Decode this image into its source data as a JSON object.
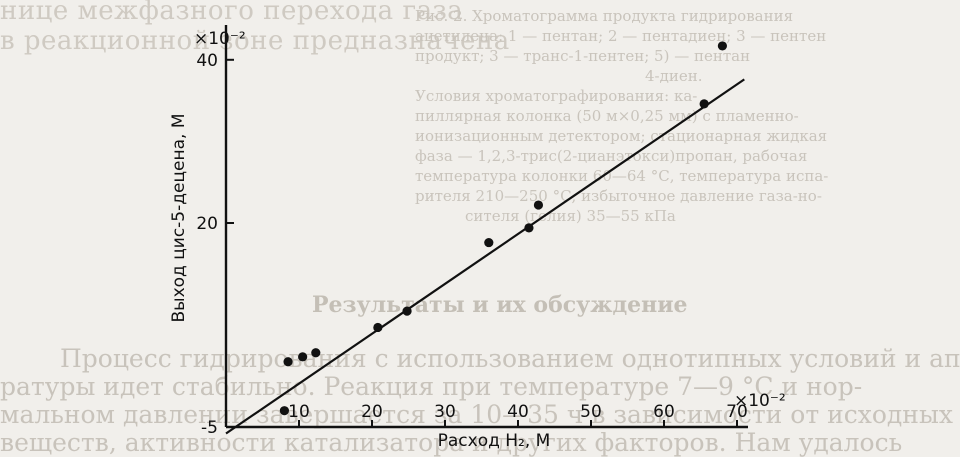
{
  "background_text": {
    "top_lines": [
      "нице межфазного перехода газа",
      "в реакционной зоне предназначена"
    ],
    "figure_caption": [
      "Рис. 2. Хроматограмма продукта гидрирования",
      "ацетилена: 1 — пентан; 2 — пентадиен; 3 — пентен",
      "продукт; 3 — транс-1-пентен; 5) — пентан",
      "4-диен."
    ],
    "method_paragraph": [
      "Условия хроматографирования: ка-",
      "пиллярная колонка (50 м×0,25 мм) с пламенно-",
      "ионизационным детектором; стационарная жидкая",
      "фаза — 1,2,3-трис(2-цианэтокси)пропан, рабочая",
      "температура колонки 60—64 °С, температура испа-",
      "рителя 210—250 °С, избыточное давление газа-но-",
      "сителя (гелия) 35—55 кПа"
    ],
    "section_heading": "Результаты и их обсуждение",
    "body_paragraph": [
      "Процесс гидрирования с использованием однотипных условий и аппа-",
      "ратуры идет стабильно. Реакция при температуре 7—9 °С и нор-",
      "мальном давлении завершается за 10—35 ч в зависимости от исходных",
      "веществ, активности катализатора и других факторов. Нам удалось"
    ]
  },
  "chart_data": {
    "type": "scatter",
    "x_multiplier_label": "×10⁻²",
    "y_multiplier_label": "×10⁻²",
    "xlabel": "Расход H₂, М",
    "ylabel": "Выход цис-5-децена, М",
    "xlim": [
      0,
      74
    ],
    "ylim": [
      -5,
      45
    ],
    "x_ticks": [
      10,
      20,
      30,
      40,
      50,
      60,
      70
    ],
    "y_ticks": [
      -5,
      20,
      40
    ],
    "points": [
      {
        "x": 8,
        "y": -3
      },
      {
        "x": 8.5,
        "y": 3
      },
      {
        "x": 10.5,
        "y": 3.6
      },
      {
        "x": 12.3,
        "y": 4.1
      },
      {
        "x": 20.8,
        "y": 7.2
      },
      {
        "x": 24.8,
        "y": 9.2
      },
      {
        "x": 36,
        "y": 17.6
      },
      {
        "x": 41.5,
        "y": 19.4
      },
      {
        "x": 42.8,
        "y": 22.2
      },
      {
        "x": 65.5,
        "y": 34.6
      },
      {
        "x": 68,
        "y": 41.7
      }
    ],
    "fit_line": {
      "x": [
        0,
        71
      ],
      "y": [
        -5.8,
        37.6
      ]
    }
  }
}
